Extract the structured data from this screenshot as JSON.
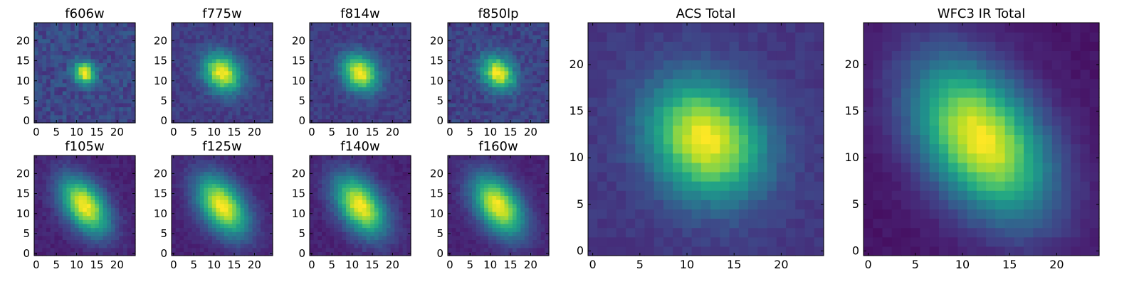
{
  "colormap": "viridis",
  "chart_data": [
    {
      "type": "heatmap",
      "title": "f606w",
      "size": 25,
      "center": [
        12,
        12
      ],
      "sigma": [
        2.0,
        1.8
      ],
      "angle": -50,
      "noise": 0.08,
      "background": 0.22,
      "seed": 11,
      "xticks": [
        0,
        5,
        10,
        15,
        20
      ],
      "yticks": [
        0,
        5,
        10,
        15,
        20
      ],
      "xlim": [
        -0.5,
        24.5
      ],
      "ylim": [
        -0.5,
        24.5
      ]
    },
    {
      "type": "heatmap",
      "title": "f775w",
      "size": 25,
      "center": [
        12,
        12
      ],
      "sigma": [
        3.6,
        2.9
      ],
      "angle": -50,
      "noise": 0.05,
      "background": 0.18,
      "seed": 23,
      "xticks": [
        0,
        5,
        10,
        15,
        20
      ],
      "yticks": [
        0,
        5,
        10,
        15,
        20
      ],
      "xlim": [
        -0.5,
        24.5
      ],
      "ylim": [
        -0.5,
        24.5
      ]
    },
    {
      "type": "heatmap",
      "title": "f814w",
      "size": 25,
      "center": [
        12,
        12
      ],
      "sigma": [
        3.4,
        2.8
      ],
      "angle": -50,
      "noise": 0.05,
      "background": 0.18,
      "seed": 37,
      "xticks": [
        0,
        5,
        10,
        15,
        20
      ],
      "yticks": [
        0,
        5,
        10,
        15,
        20
      ],
      "xlim": [
        -0.5,
        24.5
      ],
      "ylim": [
        -0.5,
        24.5
      ]
    },
    {
      "type": "heatmap",
      "title": "f850lp",
      "size": 25,
      "center": [
        12,
        12
      ],
      "sigma": [
        3.2,
        2.5
      ],
      "angle": -50,
      "noise": 0.07,
      "background": 0.2,
      "seed": 41,
      "xticks": [
        0,
        5,
        10,
        15,
        20
      ],
      "yticks": [
        0,
        5,
        10,
        15,
        20
      ],
      "xlim": [
        -0.5,
        24.5
      ],
      "ylim": [
        -0.5,
        24.5
      ]
    },
    {
      "type": "heatmap",
      "title": "f105w",
      "size": 25,
      "center": [
        12,
        12
      ],
      "sigma": [
        5.5,
        3.3
      ],
      "angle": -55,
      "noise": 0.035,
      "background": 0.1,
      "seed": 53,
      "xticks": [
        0,
        5,
        10,
        15,
        20
      ],
      "yticks": [
        0,
        5,
        10,
        15,
        20
      ],
      "xlim": [
        -0.5,
        24.5
      ],
      "ylim": [
        -0.5,
        24.5
      ]
    },
    {
      "type": "heatmap",
      "title": "f125w",
      "size": 25,
      "center": [
        12,
        12
      ],
      "sigma": [
        5.8,
        3.5
      ],
      "angle": -55,
      "noise": 0.03,
      "background": 0.1,
      "seed": 67,
      "xticks": [
        0,
        5,
        10,
        15,
        20
      ],
      "yticks": [
        0,
        5,
        10,
        15,
        20
      ],
      "xlim": [
        -0.5,
        24.5
      ],
      "ylim": [
        -0.5,
        24.5
      ]
    },
    {
      "type": "heatmap",
      "title": "f140w",
      "size": 25,
      "center": [
        12,
        12
      ],
      "sigma": [
        5.8,
        3.5
      ],
      "angle": -55,
      "noise": 0.035,
      "background": 0.1,
      "seed": 79,
      "xticks": [
        0,
        5,
        10,
        15,
        20
      ],
      "yticks": [
        0,
        5,
        10,
        15,
        20
      ],
      "xlim": [
        -0.5,
        24.5
      ],
      "ylim": [
        -0.5,
        24.5
      ]
    },
    {
      "type": "heatmap",
      "title": "f160w",
      "size": 25,
      "center": [
        12,
        12
      ],
      "sigma": [
        5.8,
        3.5
      ],
      "angle": -55,
      "noise": 0.03,
      "background": 0.1,
      "seed": 83,
      "xticks": [
        0,
        5,
        10,
        15,
        20
      ],
      "yticks": [
        0,
        5,
        10,
        15,
        20
      ],
      "xlim": [
        -0.5,
        24.5
      ],
      "ylim": [
        -0.5,
        24.5
      ]
    },
    {
      "type": "heatmap",
      "title": "ACS Total",
      "size": 25,
      "center": [
        12,
        12
      ],
      "sigma": [
        4.6,
        3.9
      ],
      "angle": -50,
      "noise": 0.03,
      "background": 0.16,
      "seed": 97,
      "xticks": [
        0,
        5,
        10,
        15,
        20
      ],
      "yticks": [
        0,
        5,
        10,
        15,
        20
      ],
      "xlim": [
        -0.5,
        24.5
      ],
      "ylim": [
        -0.5,
        24.5
      ]
    },
    {
      "type": "heatmap",
      "title": "WFC3 IR Total",
      "size": 25,
      "center": [
        12,
        12
      ],
      "sigma": [
        6.4,
        4.0
      ],
      "angle": -55,
      "noise": 0.02,
      "background": 0.06,
      "seed": 101,
      "xticks": [
        0,
        5,
        10,
        15,
        20
      ],
      "yticks": [
        0,
        5,
        10,
        15,
        20
      ],
      "xlim": [
        -0.5,
        24.5
      ],
      "ylim": [
        -0.5,
        24.5
      ]
    }
  ]
}
